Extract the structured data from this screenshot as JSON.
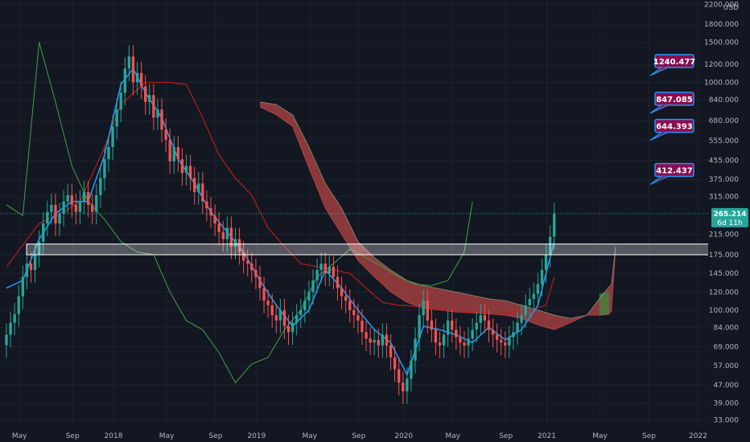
{
  "chart_data": {
    "type": "candlestick",
    "y_scale": "log",
    "ylim": [
      31,
      2300
    ],
    "currency": "USD",
    "y_ticks": [
      "2200.000",
      "1800.000",
      "1500.000",
      "1200.000",
      "1000.000",
      "840.000",
      "680.000",
      "555.000",
      "455.000",
      "375.000",
      "315.000",
      "215.000",
      "175.000",
      "145.000",
      "120.000",
      "100.000",
      "84.000",
      "69.000",
      "57.000",
      "47.000",
      "39.000",
      "33.000"
    ],
    "x_ticks": [
      "May",
      "Sep",
      "2018",
      "May",
      "Sep",
      "2019",
      "May",
      "Sep",
      "2020",
      "May",
      "Sep",
      "2021",
      "May",
      "Sep",
      "2022"
    ],
    "last_price": "265.214",
    "countdown": "6d 11h",
    "target_labels": [
      "1240.477",
      "847.085",
      "644.393",
      "412.437"
    ],
    "support_zone": [
      175,
      195
    ],
    "weekly_close": [
      [
        0,
        78
      ],
      [
        1,
        88
      ],
      [
        2,
        96
      ],
      [
        3,
        115
      ],
      [
        4,
        140
      ],
      [
        5,
        160
      ],
      [
        6,
        150
      ],
      [
        7,
        175
      ],
      [
        8,
        200
      ],
      [
        9,
        240
      ],
      [
        10,
        270
      ],
      [
        11,
        290
      ],
      [
        12,
        240
      ],
      [
        13,
        265
      ],
      [
        14,
        300
      ],
      [
        15,
        320
      ],
      [
        16,
        290
      ],
      [
        17,
        270
      ],
      [
        18,
        300
      ],
      [
        19,
        330
      ],
      [
        20,
        290
      ],
      [
        21,
        270
      ],
      [
        22,
        320
      ],
      [
        23,
        380
      ],
      [
        24,
        460
      ],
      [
        25,
        520
      ],
      [
        26,
        640
      ],
      [
        27,
        760
      ],
      [
        28,
        900
      ],
      [
        29,
        1150
      ],
      [
        30,
        1300
      ],
      [
        31,
        1000
      ],
      [
        32,
        1100
      ],
      [
        33,
        960
      ],
      [
        34,
        820
      ],
      [
        35,
        880
      ],
      [
        36,
        700
      ],
      [
        37,
        760
      ],
      [
        38,
        620
      ],
      [
        39,
        560
      ],
      [
        40,
        450
      ],
      [
        41,
        520
      ],
      [
        42,
        460
      ],
      [
        43,
        400
      ],
      [
        44,
        430
      ],
      [
        45,
        380
      ],
      [
        46,
        330
      ],
      [
        47,
        360
      ],
      [
        48,
        300
      ],
      [
        49,
        280
      ],
      [
        50,
        260
      ],
      [
        51,
        240
      ],
      [
        52,
        220
      ],
      [
        53,
        205
      ],
      [
        54,
        230
      ],
      [
        55,
        190
      ],
      [
        56,
        205
      ],
      [
        57,
        180
      ],
      [
        58,
        165
      ],
      [
        59,
        160
      ],
      [
        60,
        150
      ],
      [
        61,
        140
      ],
      [
        62,
        125
      ],
      [
        63,
        110
      ],
      [
        64,
        105
      ],
      [
        65,
        95
      ],
      [
        66,
        90
      ],
      [
        67,
        100
      ],
      [
        68,
        85
      ],
      [
        69,
        80
      ],
      [
        70,
        88
      ],
      [
        71,
        95
      ],
      [
        72,
        100
      ],
      [
        73,
        110
      ],
      [
        74,
        120
      ],
      [
        75,
        135
      ],
      [
        76,
        150
      ],
      [
        77,
        160
      ],
      [
        78,
        145
      ],
      [
        79,
        155
      ],
      [
        80,
        140
      ],
      [
        81,
        125
      ],
      [
        82,
        115
      ],
      [
        83,
        110
      ],
      [
        84,
        100
      ],
      [
        85,
        95
      ],
      [
        86,
        90
      ],
      [
        87,
        80
      ],
      [
        88,
        75
      ],
      [
        89,
        72
      ],
      [
        90,
        74
      ],
      [
        91,
        70
      ],
      [
        92,
        78
      ],
      [
        93,
        70
      ],
      [
        94,
        62
      ],
      [
        95,
        55
      ],
      [
        96,
        48
      ],
      [
        97,
        44
      ],
      [
        98,
        50
      ],
      [
        99,
        60
      ],
      [
        100,
        75
      ],
      [
        101,
        95
      ],
      [
        102,
        110
      ],
      [
        103,
        90
      ],
      [
        104,
        82
      ],
      [
        105,
        72
      ],
      [
        106,
        70
      ],
      [
        107,
        78
      ],
      [
        108,
        90
      ],
      [
        109,
        82
      ],
      [
        110,
        76
      ],
      [
        111,
        72
      ],
      [
        112,
        70
      ],
      [
        113,
        75
      ],
      [
        114,
        82
      ],
      [
        115,
        88
      ],
      [
        116,
        95
      ],
      [
        117,
        90
      ],
      [
        118,
        82
      ],
      [
        119,
        78
      ],
      [
        120,
        74
      ],
      [
        121,
        72
      ],
      [
        122,
        70
      ],
      [
        123,
        76
      ],
      [
        124,
        80
      ],
      [
        125,
        88
      ],
      [
        126,
        95
      ],
      [
        127,
        105
      ],
      [
        128,
        112
      ],
      [
        129,
        118
      ],
      [
        130,
        130
      ],
      [
        131,
        150
      ],
      [
        132,
        175
      ],
      [
        133,
        210
      ],
      [
        134,
        265
      ]
    ],
    "conversion_line": [
      [
        0,
        125
      ],
      [
        4,
        135
      ],
      [
        8,
        205
      ],
      [
        12,
        265
      ],
      [
        16,
        300
      ],
      [
        20,
        300
      ],
      [
        24,
        480
      ],
      [
        28,
        980
      ],
      [
        31,
        1150
      ],
      [
        34,
        900
      ],
      [
        38,
        700
      ],
      [
        42,
        460
      ],
      [
        46,
        360
      ],
      [
        50,
        270
      ],
      [
        54,
        220
      ],
      [
        58,
        180
      ],
      [
        62,
        135
      ],
      [
        66,
        105
      ],
      [
        70,
        85
      ],
      [
        74,
        100
      ],
      [
        78,
        150
      ],
      [
        82,
        125
      ],
      [
        86,
        100
      ],
      [
        90,
        82
      ],
      [
        94,
        72
      ],
      [
        98,
        52
      ],
      [
        102,
        85
      ],
      [
        106,
        82
      ],
      [
        110,
        78
      ],
      [
        114,
        72
      ],
      [
        118,
        84
      ],
      [
        122,
        74
      ],
      [
        126,
        82
      ],
      [
        130,
        105
      ],
      [
        134,
        200
      ]
    ],
    "base_line": [
      [
        0,
        155
      ],
      [
        8,
        240
      ],
      [
        14,
        270
      ],
      [
        18,
        300
      ],
      [
        24,
        520
      ],
      [
        28,
        800
      ],
      [
        34,
        1000
      ],
      [
        40,
        1000
      ],
      [
        44,
        980
      ],
      [
        48,
        700
      ],
      [
        52,
        480
      ],
      [
        56,
        380
      ],
      [
        60,
        320
      ],
      [
        64,
        230
      ],
      [
        68,
        190
      ],
      [
        72,
        160
      ],
      [
        76,
        155
      ],
      [
        80,
        150
      ],
      [
        84,
        145
      ],
      [
        88,
        125
      ],
      [
        92,
        108
      ],
      [
        96,
        105
      ],
      [
        100,
        104
      ],
      [
        104,
        102
      ],
      [
        108,
        100
      ],
      [
        112,
        98
      ],
      [
        116,
        97
      ],
      [
        120,
        96
      ],
      [
        124,
        98
      ],
      [
        128,
        100
      ],
      [
        132,
        105
      ],
      [
        134,
        140
      ]
    ],
    "lagging_span": [
      [
        0,
        290
      ],
      [
        4,
        260
      ],
      [
        8,
        1500
      ],
      [
        12,
        820
      ],
      [
        16,
        430
      ],
      [
        20,
        300
      ],
      [
        24,
        250
      ],
      [
        28,
        200
      ],
      [
        32,
        180
      ],
      [
        36,
        175
      ],
      [
        40,
        120
      ],
      [
        44,
        90
      ],
      [
        48,
        82
      ],
      [
        52,
        65
      ],
      [
        56,
        48
      ],
      [
        60,
        58
      ],
      [
        64,
        62
      ],
      [
        68,
        82
      ],
      [
        72,
        100
      ],
      [
        76,
        140
      ],
      [
        80,
        160
      ],
      [
        84,
        185
      ],
      [
        88,
        170
      ],
      [
        92,
        155
      ],
      [
        96,
        140
      ],
      [
        100,
        130
      ],
      [
        104,
        128
      ],
      [
        108,
        135
      ],
      [
        112,
        180
      ],
      [
        114,
        300
      ]
    ],
    "cloud_upper": [
      [
        62,
        820
      ],
      [
        66,
        800
      ],
      [
        70,
        720
      ],
      [
        74,
        520
      ],
      [
        78,
        360
      ],
      [
        82,
        280
      ],
      [
        86,
        200
      ],
      [
        90,
        170
      ],
      [
        94,
        150
      ],
      [
        98,
        135
      ],
      [
        102,
        128
      ],
      [
        106,
        124
      ],
      [
        110,
        120
      ],
      [
        114,
        116
      ],
      [
        118,
        112
      ],
      [
        122,
        110
      ],
      [
        126,
        105
      ],
      [
        130,
        100
      ],
      [
        134,
        95
      ],
      [
        138,
        92
      ],
      [
        142,
        95
      ],
      [
        146,
        118
      ],
      [
        148,
        130
      ],
      [
        149,
        190
      ]
    ],
    "cloud_lower": [
      [
        62,
        780
      ],
      [
        66,
        720
      ],
      [
        70,
        640
      ],
      [
        74,
        420
      ],
      [
        78,
        280
      ],
      [
        82,
        215
      ],
      [
        86,
        165
      ],
      [
        90,
        140
      ],
      [
        94,
        120
      ],
      [
        98,
        108
      ],
      [
        102,
        102
      ],
      [
        106,
        100
      ],
      [
        110,
        98
      ],
      [
        114,
        97
      ],
      [
        118,
        96
      ],
      [
        122,
        95
      ],
      [
        126,
        92
      ],
      [
        130,
        86
      ],
      [
        134,
        82
      ],
      [
        138,
        88
      ],
      [
        142,
        95
      ],
      [
        146,
        95
      ],
      [
        148,
        98
      ],
      [
        149,
        185
      ]
    ]
  }
}
